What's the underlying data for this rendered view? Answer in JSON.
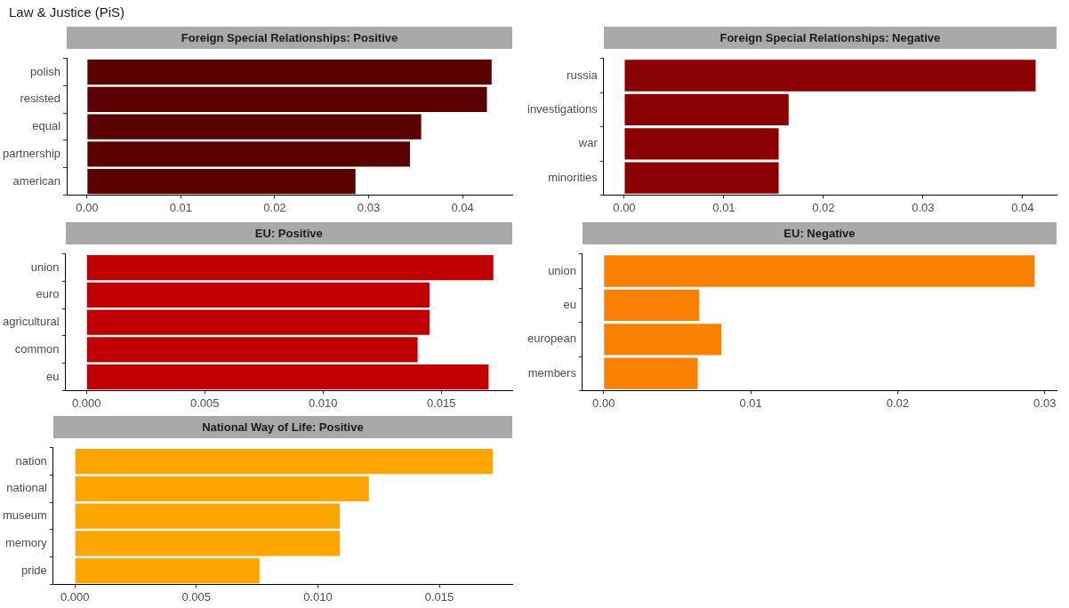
{
  "chart_data": [
    {
      "type": "bar",
      "orientation": "horizontal",
      "title": "Foreign Special Relationships: Positive",
      "annotations": [
        "Law & Justice (PiS)"
      ],
      "categories": [
        "polish",
        "resisted",
        "equal",
        "partnership",
        "american"
      ],
      "values": [
        0.0431,
        0.0426,
        0.0356,
        0.0344,
        0.0286
      ],
      "color": "#5a0000",
      "xlim": [
        -0.00216,
        0.0453
      ],
      "xticks": [
        {
          "value": 0,
          "label": "0.00"
        },
        {
          "value": 0.01,
          "label": "0.01"
        },
        {
          "value": 0.02,
          "label": "0.02"
        },
        {
          "value": 0.03,
          "label": "0.03"
        },
        {
          "value": 0.04,
          "label": "0.04"
        }
      ],
      "grid": false,
      "legend": false
    },
    {
      "type": "bar",
      "orientation": "horizontal",
      "title": "Foreign Special Relationships: Negative",
      "categories": [
        "russia",
        "investigations",
        "war",
        "minorities"
      ],
      "values": [
        0.0413,
        0.0165,
        0.0155,
        0.0155
      ],
      "color": "#8b0000",
      "xlim": [
        -0.00207,
        0.0434
      ],
      "xticks": [
        {
          "value": 0,
          "label": "0.00"
        },
        {
          "value": 0.01,
          "label": "0.01"
        },
        {
          "value": 0.02,
          "label": "0.02"
        },
        {
          "value": 0.03,
          "label": "0.03"
        },
        {
          "value": 0.04,
          "label": "0.04"
        }
      ],
      "grid": false,
      "legend": false
    },
    {
      "type": "bar",
      "orientation": "horizontal",
      "title": "EU: Positive",
      "categories": [
        "union",
        "euro",
        "agricultural",
        "common",
        "eu"
      ],
      "values": [
        0.0172,
        0.0145,
        0.0145,
        0.014,
        0.017
      ],
      "color": "#c00000",
      "xlim": [
        -0.00089,
        0.018
      ],
      "xticks": [
        {
          "value": 0,
          "label": "0.000"
        },
        {
          "value": 0.005,
          "label": "0.005"
        },
        {
          "value": 0.01,
          "label": "0.010"
        },
        {
          "value": 0.015,
          "label": "0.015"
        }
      ],
      "grid": false,
      "legend": false
    },
    {
      "type": "bar",
      "orientation": "horizontal",
      "title": "EU: Negative",
      "categories": [
        "union",
        "eu",
        "european",
        "members"
      ],
      "values": [
        0.0293,
        0.0065,
        0.008,
        0.0064
      ],
      "color": "#f98000",
      "xlim": [
        -0.00144,
        0.0308
      ],
      "xticks": [
        {
          "value": 0,
          "label": "0.00"
        },
        {
          "value": 0.01,
          "label": "0.01"
        },
        {
          "value": 0.02,
          "label": "0.02"
        },
        {
          "value": 0.03,
          "label": "0.03"
        }
      ],
      "grid": false,
      "legend": false
    },
    {
      "type": "bar",
      "orientation": "horizontal",
      "title": "National Way of Life: Positive",
      "categories": [
        "nation",
        "national",
        "museum",
        "memory",
        "pride"
      ],
      "values": [
        0.0172,
        0.0121,
        0.0109,
        0.0109,
        0.0076
      ],
      "color": "#ffa500",
      "xlim": [
        -0.00089,
        0.018
      ],
      "xticks": [
        {
          "value": 0,
          "label": "0.000"
        },
        {
          "value": 0.005,
          "label": "0.005"
        },
        {
          "value": 0.01,
          "label": "0.010"
        },
        {
          "value": 0.015,
          "label": "0.015"
        }
      ],
      "grid": false,
      "legend": false
    }
  ]
}
